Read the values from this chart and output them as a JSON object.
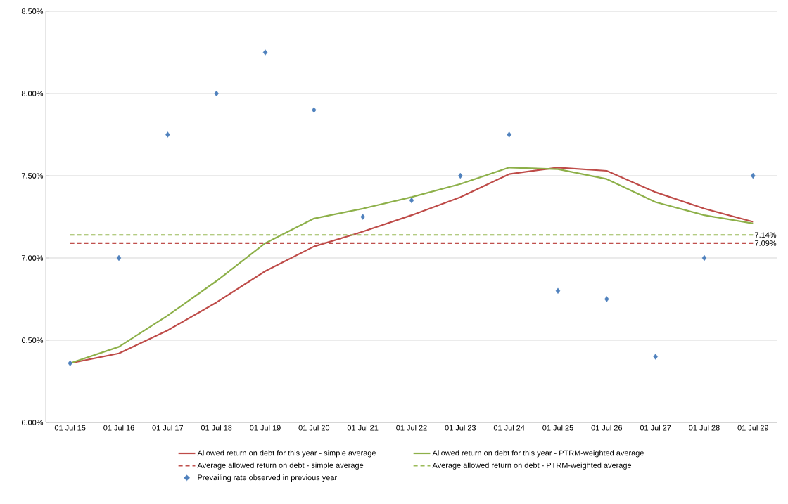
{
  "chart_data": {
    "type": "line",
    "categories": [
      "01 Jul 15",
      "01 Jul 16",
      "01 Jul 17",
      "01 Jul 18",
      "01 Jul 19",
      "01 Jul 20",
      "01 Jul 21",
      "01 Jul 22",
      "01 Jul 23",
      "01 Jul 24",
      "01 Jul 25",
      "01 Jul 26",
      "01 Jul 27",
      "01 Jul 28",
      "01 Jul 29"
    ],
    "series": [
      {
        "name": "Allowed return on debt for this year - simple average",
        "color": "#be4b48",
        "line_style": "solid",
        "values": [
          6.36,
          6.42,
          6.56,
          6.73,
          6.92,
          7.07,
          7.16,
          7.26,
          7.37,
          7.51,
          7.55,
          7.53,
          7.4,
          7.3,
          7.22
        ]
      },
      {
        "name": "Allowed return on debt for this year - PTRM-weighted average",
        "color": "#8db049",
        "line_style": "solid",
        "values": [
          6.36,
          6.46,
          6.65,
          6.86,
          7.09,
          7.24,
          7.3,
          7.37,
          7.45,
          7.55,
          7.54,
          7.48,
          7.34,
          7.26,
          7.21
        ]
      },
      {
        "name": "Average allowed return on debt - simple average",
        "color": "#c0504d",
        "line_style": "dashed",
        "values": [
          7.09,
          7.09,
          7.09,
          7.09,
          7.09,
          7.09,
          7.09,
          7.09,
          7.09,
          7.09,
          7.09,
          7.09,
          7.09,
          7.09,
          7.09
        ],
        "value_labels": [
          null,
          null,
          null,
          null,
          null,
          null,
          null,
          null,
          null,
          null,
          null,
          null,
          null,
          null,
          "7.09%"
        ]
      },
      {
        "name": "Average allowed return on debt - PTRM-weighted average",
        "color": "#9bbb59",
        "line_style": "dashed",
        "values": [
          7.14,
          7.14,
          7.14,
          7.14,
          7.14,
          7.14,
          7.14,
          7.14,
          7.14,
          7.14,
          7.14,
          7.14,
          7.14,
          7.14,
          7.14
        ],
        "value_labels": [
          null,
          null,
          null,
          null,
          null,
          null,
          null,
          null,
          null,
          null,
          null,
          null,
          null,
          null,
          "7.14%"
        ]
      },
      {
        "name": "Prevailing rate observed in previous year",
        "type": "scatter",
        "color": "#4f81bd",
        "marker": "diamond",
        "values": [
          6.36,
          7.0,
          7.75,
          8.0,
          8.25,
          7.9,
          7.25,
          7.35,
          7.5,
          7.75,
          6.8,
          6.75,
          6.4,
          7.0,
          7.5
        ]
      }
    ],
    "ylim": [
      6.0,
      8.5
    ],
    "yticks": [
      {
        "value": 6.0,
        "label": "6.00%"
      },
      {
        "value": 6.5,
        "label": "6.50%"
      },
      {
        "value": 7.0,
        "label": "7.00%"
      },
      {
        "value": 7.5,
        "label": "7.50%"
      },
      {
        "value": 8.0,
        "label": "8.00%"
      },
      {
        "value": 8.5,
        "label": "8.50%"
      }
    ],
    "grid": "y",
    "legend": "bottom"
  }
}
